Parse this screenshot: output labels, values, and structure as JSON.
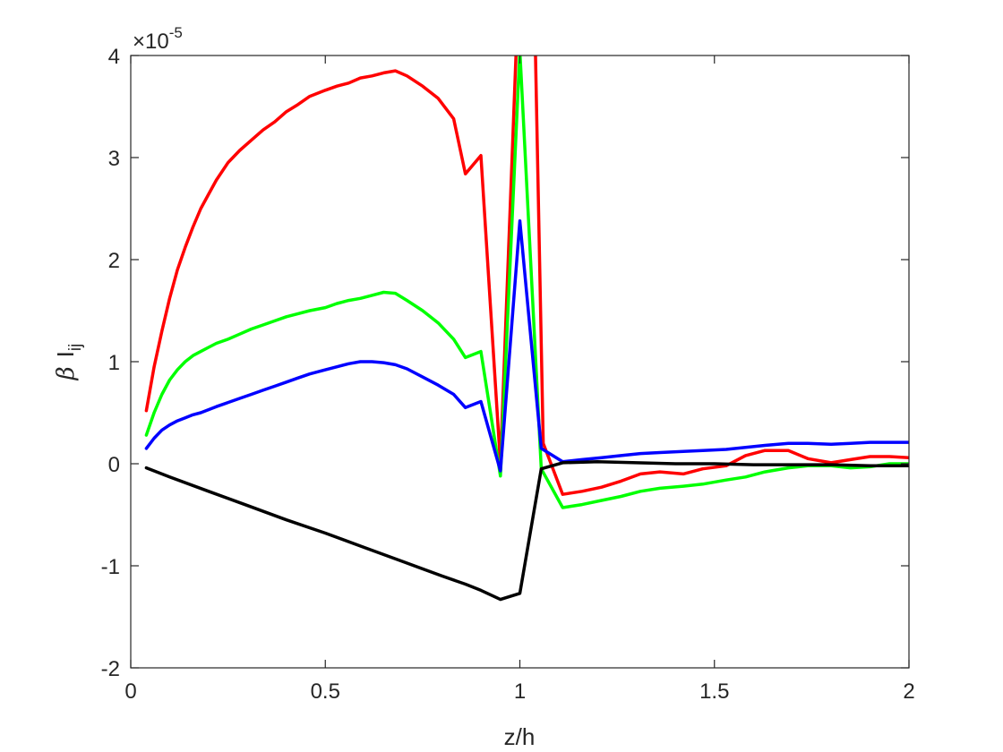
{
  "chart_data": {
    "type": "line",
    "xlabel": "z/h",
    "ylabel_symbol": "β",
    "ylabel_main": "I",
    "ylabel_sub": "ij",
    "y_multiplier_base": "×10",
    "y_multiplier_exponent": "-5",
    "xlim": [
      0,
      2
    ],
    "ylim": [
      -2,
      4
    ],
    "xticks": [
      0,
      0.5,
      1,
      1.5,
      2
    ],
    "xtick_labels": [
      "0",
      "0.5",
      "1",
      "1.5",
      "2"
    ],
    "yticks": [
      -2,
      -1,
      0,
      1,
      2,
      3,
      4
    ],
    "ytick_labels": [
      "-2",
      "-1",
      "0",
      "1",
      "2",
      "3",
      "4"
    ],
    "grid": false,
    "legend": null,
    "series": [
      {
        "color": "#ff0000",
        "x": [
          0.04,
          0.06,
          0.08,
          0.1,
          0.12,
          0.14,
          0.16,
          0.18,
          0.2,
          0.22,
          0.25,
          0.28,
          0.31,
          0.34,
          0.37,
          0.4,
          0.43,
          0.46,
          0.5,
          0.53,
          0.56,
          0.59,
          0.62,
          0.65,
          0.68,
          0.71,
          0.75,
          0.79,
          0.83,
          0.86,
          0.9,
          0.95,
          1.0,
          1.035,
          1.06,
          1.11,
          1.16,
          1.21,
          1.26,
          1.31,
          1.36,
          1.42,
          1.47,
          1.53,
          1.58,
          1.63,
          1.69,
          1.74,
          1.8,
          1.85,
          1.9,
          1.95,
          2.0
        ],
        "y": [
          0.52,
          0.95,
          1.3,
          1.62,
          1.9,
          2.12,
          2.32,
          2.5,
          2.64,
          2.78,
          2.95,
          3.07,
          3.17,
          3.27,
          3.35,
          3.45,
          3.52,
          3.6,
          3.66,
          3.7,
          3.73,
          3.78,
          3.8,
          3.83,
          3.85,
          3.8,
          3.7,
          3.58,
          3.38,
          2.84,
          3.02,
          0.0,
          5.0,
          5.0,
          0.2,
          -0.3,
          -0.27,
          -0.23,
          -0.17,
          -0.1,
          -0.08,
          -0.1,
          -0.05,
          -0.02,
          0.08,
          0.13,
          0.13,
          0.05,
          0.01,
          0.04,
          0.07,
          0.07,
          0.06
        ]
      },
      {
        "color": "#00ff00",
        "x": [
          0.04,
          0.06,
          0.08,
          0.1,
          0.12,
          0.14,
          0.16,
          0.18,
          0.2,
          0.22,
          0.25,
          0.28,
          0.31,
          0.34,
          0.37,
          0.4,
          0.43,
          0.46,
          0.5,
          0.53,
          0.56,
          0.59,
          0.62,
          0.65,
          0.68,
          0.71,
          0.75,
          0.79,
          0.83,
          0.86,
          0.9,
          0.95,
          1.0,
          1.055,
          1.11,
          1.16,
          1.21,
          1.26,
          1.31,
          1.36,
          1.42,
          1.47,
          1.53,
          1.58,
          1.63,
          1.69,
          1.74,
          1.8,
          1.85,
          1.9,
          1.95,
          2.0
        ],
        "y": [
          0.28,
          0.5,
          0.68,
          0.82,
          0.92,
          1.0,
          1.06,
          1.1,
          1.14,
          1.18,
          1.22,
          1.27,
          1.32,
          1.36,
          1.4,
          1.44,
          1.47,
          1.5,
          1.53,
          1.57,
          1.6,
          1.62,
          1.65,
          1.68,
          1.67,
          1.6,
          1.5,
          1.38,
          1.22,
          1.04,
          1.1,
          -0.12,
          4.05,
          -0.05,
          -0.43,
          -0.4,
          -0.36,
          -0.32,
          -0.27,
          -0.24,
          -0.22,
          -0.2,
          -0.16,
          -0.13,
          -0.08,
          -0.04,
          -0.02,
          -0.02,
          -0.04,
          -0.03,
          0.0,
          0.0
        ]
      },
      {
        "color": "#0000ff",
        "x": [
          0.04,
          0.06,
          0.08,
          0.1,
          0.12,
          0.14,
          0.16,
          0.18,
          0.2,
          0.22,
          0.25,
          0.28,
          0.31,
          0.34,
          0.37,
          0.4,
          0.43,
          0.46,
          0.5,
          0.53,
          0.56,
          0.59,
          0.62,
          0.65,
          0.68,
          0.71,
          0.75,
          0.79,
          0.83,
          0.86,
          0.9,
          0.95,
          1.0,
          1.055,
          1.11,
          1.16,
          1.21,
          1.26,
          1.31,
          1.36,
          1.42,
          1.47,
          1.53,
          1.58,
          1.63,
          1.69,
          1.74,
          1.8,
          1.85,
          1.9,
          1.95,
          2.0
        ],
        "y": [
          0.15,
          0.25,
          0.33,
          0.38,
          0.42,
          0.45,
          0.48,
          0.5,
          0.53,
          0.56,
          0.6,
          0.64,
          0.68,
          0.72,
          0.76,
          0.8,
          0.84,
          0.88,
          0.92,
          0.95,
          0.98,
          1.0,
          1.0,
          0.99,
          0.97,
          0.93,
          0.85,
          0.77,
          0.68,
          0.55,
          0.61,
          -0.07,
          2.38,
          0.15,
          0.02,
          0.04,
          0.06,
          0.08,
          0.1,
          0.11,
          0.12,
          0.13,
          0.14,
          0.16,
          0.18,
          0.2,
          0.2,
          0.19,
          0.2,
          0.21,
          0.21,
          0.21
        ]
      },
      {
        "color": "#000000",
        "x": [
          0.04,
          0.1,
          0.2,
          0.3,
          0.4,
          0.5,
          0.6,
          0.7,
          0.8,
          0.86,
          0.9,
          0.95,
          1.0,
          1.055,
          1.11,
          1.2,
          1.3,
          1.4,
          1.5,
          1.6,
          1.7,
          1.8,
          1.9,
          2.0
        ],
        "y": [
          -0.04,
          -0.13,
          -0.27,
          -0.41,
          -0.55,
          -0.68,
          -0.82,
          -0.96,
          -1.1,
          -1.18,
          -1.24,
          -1.33,
          -1.27,
          -0.05,
          0.01,
          0.02,
          0.01,
          0.0,
          0.0,
          -0.01,
          -0.01,
          -0.01,
          -0.02,
          -0.02
        ]
      }
    ]
  }
}
